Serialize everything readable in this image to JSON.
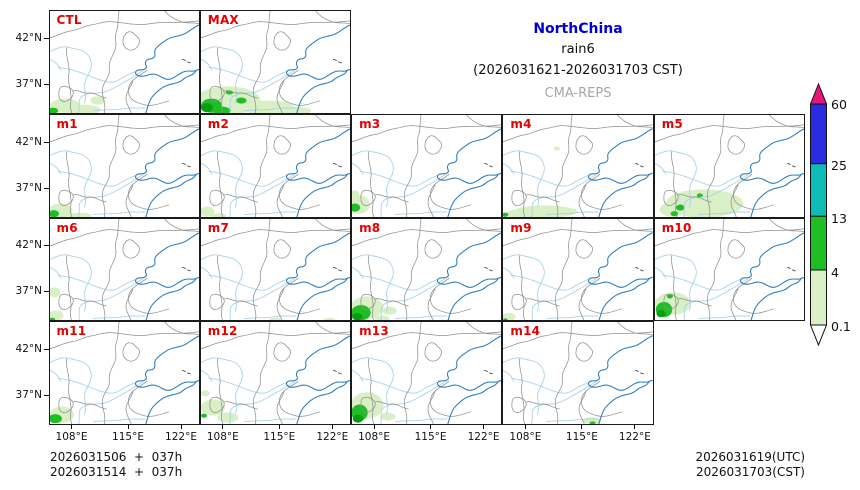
{
  "figure": {
    "region": "NorthChina",
    "variable": "rain6",
    "period": "(2026031621-2026031703 CST)",
    "model": "CMA-REPS"
  },
  "axes": {
    "y_ticks": [
      "42°N",
      "37°N"
    ],
    "x_ticks": [
      "108°E",
      "115°E",
      "122°E"
    ]
  },
  "colorbar": {
    "labels": [
      "60",
      "25",
      "13",
      "4",
      "0.1"
    ],
    "colors": {
      "above_60": "#e5157c",
      "25_60": "#2b2bdf",
      "13_25": "#0dbcb5",
      "4_13": "#1fbe24",
      "0.1_4": "#d9f0c6",
      "below_0.1": "#ffffff"
    }
  },
  "colors": {
    "panel_label": "#e50000",
    "title_blue": "#0000d4",
    "model_gray": "#a6a6a6",
    "precip_light": "#d9f0c6",
    "precip_mid": "#1fbe24",
    "precip_dark": "#089c10"
  },
  "footer": {
    "init_line1": "2026031506  +  037h",
    "init_line2": "2026031514  +  037h",
    "valid_line1": "2026031619(UTC)",
    "valid_line2": "2026031703(CST)"
  },
  "panels": [
    {
      "label": "CTL",
      "row": 0,
      "col": 0,
      "blobs": [
        [
          0.1,
          0.93,
          0.1,
          0.07,
          1
        ],
        [
          0.22,
          0.97,
          0.12,
          0.05,
          1
        ],
        [
          0.32,
          0.88,
          0.05,
          0.04,
          1
        ],
        [
          0.02,
          0.98,
          0.035,
          0.03,
          2
        ]
      ]
    },
    {
      "label": "MAX",
      "row": 0,
      "col": 1,
      "blobs": [
        [
          0.18,
          0.88,
          0.22,
          0.14,
          1
        ],
        [
          0.45,
          0.95,
          0.18,
          0.07,
          1
        ],
        [
          0.62,
          0.98,
          0.12,
          0.04,
          1
        ],
        [
          0.07,
          0.93,
          0.07,
          0.07,
          2
        ],
        [
          0.14,
          0.98,
          0.06,
          0.04,
          2
        ],
        [
          0.27,
          0.88,
          0.035,
          0.03,
          2
        ],
        [
          0.19,
          0.8,
          0.025,
          0.02,
          2
        ],
        [
          0.04,
          0.95,
          0.04,
          0.045,
          3
        ]
      ]
    },
    {
      "label": "m1",
      "row": 1,
      "col": 0,
      "blobs": [
        [
          0.07,
          0.94,
          0.08,
          0.07,
          1
        ],
        [
          0.2,
          0.99,
          0.08,
          0.03,
          1
        ],
        [
          0.025,
          0.97,
          0.035,
          0.035,
          2
        ]
      ]
    },
    {
      "label": "m2",
      "row": 1,
      "col": 1,
      "blobs": [
        [
          0.04,
          0.95,
          0.05,
          0.05,
          1
        ],
        [
          0.12,
          0.99,
          0.05,
          0.025,
          1
        ]
      ]
    },
    {
      "label": "m3",
      "row": 1,
      "col": 2,
      "blobs": [
        [
          0.05,
          0.88,
          0.07,
          0.09,
          1
        ],
        [
          0.02,
          0.78,
          0.03,
          0.04,
          1
        ],
        [
          0.02,
          0.91,
          0.035,
          0.04,
          2
        ]
      ]
    },
    {
      "label": "m4",
      "row": 1,
      "col": 3,
      "blobs": [
        [
          0.28,
          0.95,
          0.22,
          0.06,
          1
        ],
        [
          0.1,
          0.97,
          0.08,
          0.04,
          1
        ],
        [
          0.36,
          0.33,
          0.02,
          0.02,
          1
        ],
        [
          0.015,
          0.98,
          0.02,
          0.02,
          2
        ]
      ]
    },
    {
      "label": "m5",
      "row": 1,
      "col": 4,
      "blobs": [
        [
          0.33,
          0.87,
          0.26,
          0.14,
          1
        ],
        [
          0.12,
          0.93,
          0.09,
          0.07,
          1
        ],
        [
          0.17,
          0.91,
          0.03,
          0.03,
          2
        ],
        [
          0.3,
          0.79,
          0.02,
          0.02,
          2
        ],
        [
          0.13,
          0.97,
          0.025,
          0.025,
          2
        ]
      ]
    },
    {
      "label": "m6",
      "row": 2,
      "col": 0,
      "blobs": [
        [
          0.03,
          0.72,
          0.04,
          0.05,
          1
        ],
        [
          0.04,
          0.95,
          0.05,
          0.05,
          1
        ],
        [
          0.015,
          0.99,
          0.02,
          0.02,
          2
        ]
      ]
    },
    {
      "label": "m7",
      "row": 2,
      "col": 1,
      "blobs": [
        [
          0.5,
          0.99,
          0.04,
          0.02,
          1
        ],
        [
          0.86,
          0.99,
          0.04,
          0.02,
          1
        ]
      ]
    },
    {
      "label": "m8",
      "row": 2,
      "col": 2,
      "blobs": [
        [
          0.1,
          0.87,
          0.11,
          0.11,
          1
        ],
        [
          0.25,
          0.9,
          0.05,
          0.04,
          1
        ],
        [
          0.2,
          0.98,
          0.05,
          0.03,
          1
        ],
        [
          0.06,
          0.92,
          0.065,
          0.075,
          2
        ],
        [
          0.035,
          0.96,
          0.035,
          0.035,
          3
        ]
      ]
    },
    {
      "label": "m9",
      "row": 2,
      "col": 3,
      "blobs": [
        [
          0.04,
          0.96,
          0.045,
          0.04,
          1
        ],
        [
          0.015,
          0.99,
          0.015,
          0.015,
          2
        ]
      ]
    },
    {
      "label": "m10",
      "row": 2,
      "col": 4,
      "blobs": [
        [
          0.12,
          0.83,
          0.12,
          0.11,
          1
        ],
        [
          0.06,
          0.89,
          0.055,
          0.075,
          2
        ],
        [
          0.1,
          0.76,
          0.02,
          0.02,
          2
        ],
        [
          0.04,
          0.93,
          0.03,
          0.035,
          3
        ]
      ]
    },
    {
      "label": "m11",
      "row": 3,
      "col": 0,
      "blobs": [
        [
          0.08,
          0.91,
          0.08,
          0.08,
          1
        ],
        [
          0.035,
          0.95,
          0.045,
          0.045,
          2
        ]
      ]
    },
    {
      "label": "m12",
      "row": 3,
      "col": 1,
      "blobs": [
        [
          0.08,
          0.84,
          0.08,
          0.08,
          1
        ],
        [
          0.18,
          0.94,
          0.07,
          0.05,
          1
        ],
        [
          0.03,
          0.7,
          0.03,
          0.03,
          1
        ],
        [
          0.02,
          0.92,
          0.02,
          0.02,
          2
        ]
      ]
    },
    {
      "label": "m13",
      "row": 3,
      "col": 2,
      "blobs": [
        [
          0.1,
          0.82,
          0.11,
          0.13,
          1
        ],
        [
          0.24,
          0.93,
          0.05,
          0.04,
          1
        ],
        [
          0.05,
          0.89,
          0.055,
          0.08,
          2
        ],
        [
          0.04,
          0.95,
          0.035,
          0.04,
          3
        ]
      ]
    },
    {
      "label": "m14",
      "row": 3,
      "col": 3,
      "blobs": [
        [
          0.6,
          0.97,
          0.06,
          0.035,
          1
        ],
        [
          0.6,
          0.99,
          0.02,
          0.015,
          2
        ]
      ]
    }
  ],
  "chart_data": {
    "type": "heatmap",
    "title": "NorthChina rain6 (2026031621-2026031703 CST)",
    "subtitle": "CMA-REPS",
    "panel_labels": [
      "CTL",
      "MAX",
      "m1",
      "m2",
      "m3",
      "m4",
      "m5",
      "m6",
      "m7",
      "m8",
      "m9",
      "m10",
      "m11",
      "m12",
      "m13",
      "m14"
    ],
    "grid_rows": [
      [
        "CTL",
        "MAX"
      ],
      [
        "m1",
        "m2",
        "m3",
        "m4",
        "m5"
      ],
      [
        "m6",
        "m7",
        "m8",
        "m9",
        "m10"
      ],
      [
        "m11",
        "m12",
        "m13",
        "m14"
      ]
    ],
    "colorbar_levels": [
      0.1,
      4,
      13,
      25,
      60
    ],
    "colorbar_colors": [
      "#d9f0c6",
      "#1fbe24",
      "#0dbcb5",
      "#2b2bdf",
      "#e5157c"
    ],
    "x_tick_labels": [
      "108°E",
      "115°E",
      "122°E"
    ],
    "y_tick_labels": [
      "42°N",
      "37°N"
    ],
    "init_times": [
      "2026031506 + 037h",
      "2026031514 + 037h"
    ],
    "valid_times": [
      "2026031619(UTC)",
      "2026031703(CST)"
    ],
    "legend_position": "right",
    "grid": false
  }
}
